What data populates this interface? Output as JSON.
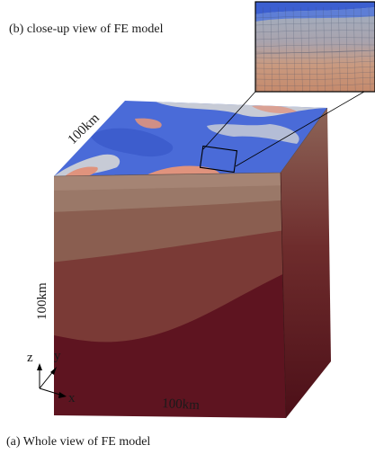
{
  "labels": {
    "closeup_caption": "(b) close-up view of  FE model",
    "whole_caption": "(a) Whole view of FE model",
    "dim_top": "100km",
    "dim_side": "100km",
    "dim_bottom": "100km"
  },
  "axes": {
    "z": "z",
    "y": "y",
    "x": "x"
  },
  "colors": {
    "top_blue": "#4a6bd8",
    "top_light": "#c7cbd6",
    "top_orange": "#e0937d",
    "layer_1": "#9a7868",
    "layer_2": "#8a5e50",
    "layer_3": "#7a3a36",
    "layer_4": "#5e1420",
    "right_face": "#6a1e22"
  }
}
